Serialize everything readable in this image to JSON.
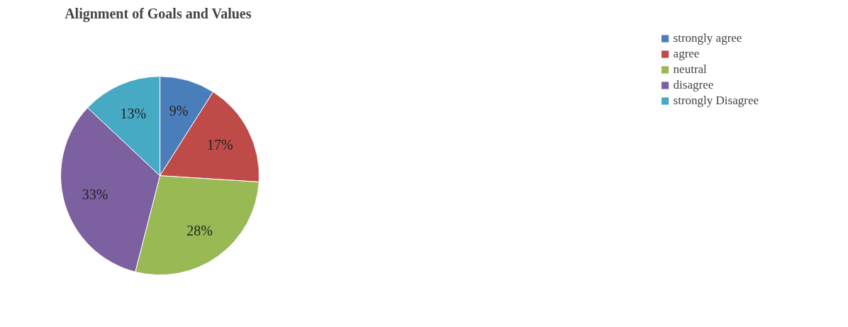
{
  "chart_data": {
    "type": "pie",
    "title": "Alignment of Goals and Values",
    "categories": [
      "strongly agree",
      "agree",
      "neutral",
      "disagree",
      "strongly Disagree"
    ],
    "values": [
      9,
      17,
      28,
      33,
      13
    ],
    "colors": [
      "#4a7ebb",
      "#be4b48",
      "#98b954",
      "#7d60a0",
      "#46aac5"
    ],
    "value_labels": [
      "9%",
      "17%",
      "28%",
      "33%",
      "13%"
    ],
    "legend": "right"
  }
}
